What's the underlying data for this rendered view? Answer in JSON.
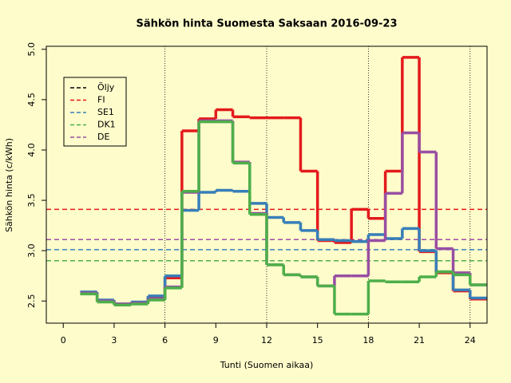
{
  "chart_data": {
    "type": "step",
    "title": "Sähkön hinta Suomesta Saksaan 2016-09-23",
    "x_label": "Tunti (Suomen aikaa)",
    "y_label": "Sähkön hinta (c/kWh)",
    "x": [
      1,
      2,
      3,
      4,
      5,
      6,
      7,
      8,
      9,
      10,
      11,
      12,
      13,
      14,
      15,
      16,
      17,
      18,
      19,
      20,
      21,
      22,
      23,
      24
    ],
    "series": [
      {
        "name": "Öljy",
        "color": "#000000",
        "values": [
          null,
          null,
          null,
          null,
          null,
          null,
          null,
          null,
          null,
          null,
          null,
          null,
          null,
          null,
          null,
          null,
          null,
          null,
          null,
          null,
          null,
          null,
          null,
          null
        ],
        "mean": null
      },
      {
        "name": "FI",
        "color": "#e41a1c",
        "values": [
          2.58,
          2.5,
          2.47,
          2.48,
          2.53,
          2.73,
          4.19,
          4.31,
          4.4,
          4.33,
          4.32,
          4.32,
          4.32,
          3.79,
          3.1,
          3.08,
          3.41,
          3.32,
          3.79,
          4.92,
          2.99,
          2.78,
          2.6,
          2.52
        ],
        "mean": 3.41
      },
      {
        "name": "SE1",
        "color": "#377eb8",
        "values": [
          2.59,
          2.51,
          2.47,
          2.49,
          2.55,
          2.75,
          3.4,
          3.58,
          3.6,
          3.59,
          3.47,
          3.33,
          3.28,
          3.2,
          3.11,
          3.1,
          3.09,
          3.16,
          3.12,
          3.22,
          3.0,
          2.79,
          2.61,
          2.53
        ],
        "mean": 3.01
      },
      {
        "name": "DK1",
        "color": "#4daf4a",
        "values": [
          2.57,
          2.49,
          2.46,
          2.47,
          2.51,
          2.63,
          3.59,
          4.28,
          4.28,
          3.87,
          3.36,
          2.86,
          2.76,
          2.74,
          2.65,
          2.37,
          2.37,
          2.7,
          2.69,
          2.69,
          2.74,
          2.79,
          2.76,
          2.66
        ],
        "mean": 2.9
      },
      {
        "name": "DE",
        "color": "#984ea3",
        "values": [
          2.58,
          2.5,
          2.47,
          2.48,
          2.52,
          2.64,
          3.58,
          4.29,
          4.29,
          3.88,
          3.37,
          2.86,
          2.76,
          2.74,
          2.65,
          2.75,
          2.75,
          3.1,
          3.57,
          4.17,
          3.98,
          3.02,
          2.78,
          2.66
        ],
        "mean": 3.11
      }
    ],
    "xlim": [
      -1,
      25
    ],
    "ylim": [
      2.28,
      5.03
    ],
    "xticks": [
      0,
      3,
      6,
      9,
      12,
      15,
      18,
      21,
      24
    ],
    "yticks": [
      {
        "value": 2.5,
        "label": "2.5"
      },
      {
        "value": 3.0,
        "label": "3.0"
      },
      {
        "value": 3.5,
        "label": "3.5"
      },
      {
        "value": 4.0,
        "label": "4.0"
      },
      {
        "value": 4.5,
        "label": "4.5"
      },
      {
        "value": 5.0,
        "label": "5.0"
      }
    ],
    "vlines": [
      6,
      12,
      18,
      24
    ],
    "legend": "topleft"
  }
}
